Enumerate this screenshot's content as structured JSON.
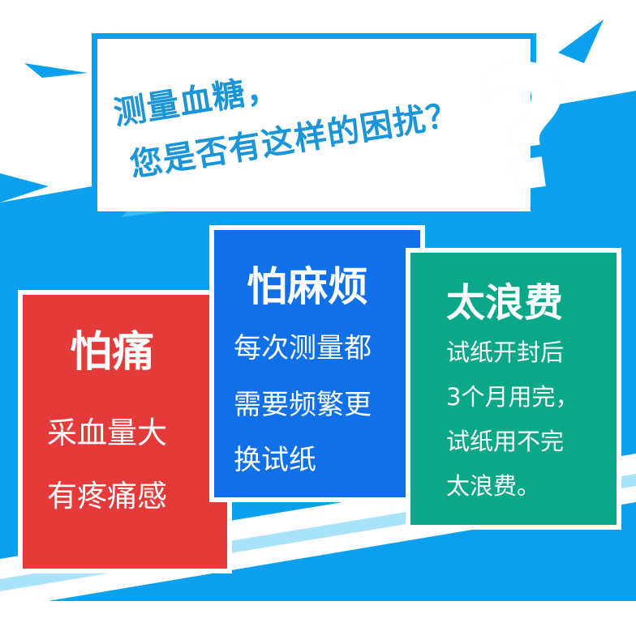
{
  "headline": {
    "line1": "测量血糖，",
    "line2": "您是否有这样的困扰？",
    "question_mark": "?"
  },
  "cards": [
    {
      "title": "怕痛",
      "lines": [
        "采血量大",
        "有疼痛感"
      ],
      "color": "#e43b3a"
    },
    {
      "title": "怕麻烦",
      "lines": [
        "每次测量都",
        "需要频繁更",
        "换试纸"
      ],
      "color": "#1070e8"
    },
    {
      "title": "太浪费",
      "lines": [
        "试纸开封后",
        "3个月用完，",
        "试纸用不完",
        "太浪费。"
      ],
      "color": "#0aa888"
    }
  ],
  "colors": {
    "band_blue": "#0aa0ee",
    "light_blue": "#3db8f5",
    "title_text": "#1a95d8"
  }
}
